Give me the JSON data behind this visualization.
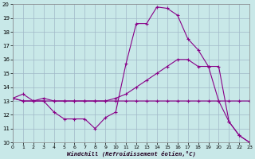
{
  "xlabel": "Windchill (Refroidissement éolien,°C)",
  "x_ticks": [
    0,
    1,
    2,
    3,
    4,
    5,
    6,
    7,
    8,
    9,
    10,
    11,
    12,
    13,
    14,
    15,
    16,
    17,
    18,
    19,
    20,
    21,
    22,
    23
  ],
  "y_ticks": [
    10,
    11,
    12,
    13,
    14,
    15,
    16,
    17,
    18,
    19,
    20
  ],
  "ylim": [
    10,
    20
  ],
  "xlim": [
    0,
    23
  ],
  "bg_color": "#c8e8e8",
  "grid_color": "#a0b8c8",
  "line_color": "#880088",
  "line1_x": [
    0,
    1,
    2,
    3,
    4,
    5,
    6,
    7,
    8,
    9,
    10,
    11,
    12,
    13,
    14,
    15,
    16,
    17,
    18,
    19,
    20,
    21,
    22,
    23
  ],
  "line1_y": [
    13.2,
    13.5,
    13.0,
    13.0,
    12.2,
    11.7,
    11.7,
    11.7,
    11.0,
    11.8,
    12.2,
    15.7,
    18.6,
    18.6,
    19.8,
    19.7,
    19.2,
    17.5,
    16.7,
    15.5,
    13.0,
    11.5,
    10.5,
    10.0
  ],
  "line2_x": [
    0,
    1,
    2,
    3,
    4,
    5,
    6,
    7,
    8,
    9,
    10,
    11,
    12,
    13,
    14,
    15,
    16,
    17,
    18,
    19,
    20,
    21,
    22,
    23
  ],
  "line2_y": [
    13.2,
    13.0,
    13.0,
    13.2,
    13.0,
    13.0,
    13.0,
    13.0,
    13.0,
    13.0,
    13.2,
    13.5,
    14.0,
    14.5,
    15.0,
    15.5,
    16.0,
    16.0,
    15.5,
    15.5,
    15.5,
    11.5,
    10.5,
    10.0
  ],
  "line3_x": [
    0,
    1,
    2,
    3,
    4,
    5,
    6,
    7,
    8,
    9,
    10,
    11,
    12,
    13,
    14,
    15,
    16,
    17,
    18,
    19,
    20,
    21,
    22,
    23
  ],
  "line3_y": [
    13.2,
    13.0,
    13.0,
    13.0,
    13.0,
    13.0,
    13.0,
    13.0,
    13.0,
    13.0,
    13.0,
    13.0,
    13.0,
    13.0,
    13.0,
    13.0,
    13.0,
    13.0,
    13.0,
    13.0,
    13.0,
    13.0,
    13.0,
    13.0
  ]
}
